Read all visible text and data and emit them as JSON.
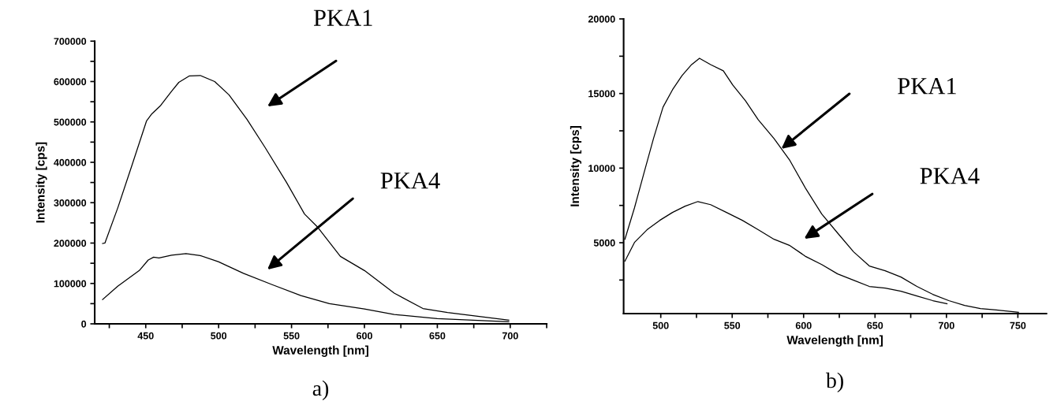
{
  "chart_data": [
    {
      "type": "line",
      "xlabel": "Wavelength [nm]",
      "ylabel": "Intensity [cps]",
      "xlim": [
        415,
        725
      ],
      "ylim": [
        0,
        700000
      ],
      "xticks": [
        {
          "value": 425,
          "label": null
        },
        450,
        {
          "value": 475,
          "label": null
        },
        500,
        {
          "value": 525,
          "label": null
        },
        550,
        {
          "value": 575,
          "label": null
        },
        600,
        {
          "value": 625,
          "label": null
        },
        650,
        {
          "value": 675,
          "label": null
        },
        700,
        {
          "value": 725,
          "label": null
        }
      ],
      "yticks": [
        0,
        {
          "value": 50000,
          "label": null
        },
        100000,
        {
          "value": 150000,
          "label": null
        },
        200000,
        {
          "value": 250000,
          "label": null
        },
        300000,
        {
          "value": 350000,
          "label": null
        },
        400000,
        {
          "value": 450000,
          "label": null
        },
        500000,
        {
          "value": 550000,
          "label": null
        },
        600000,
        {
          "value": 650000,
          "label": null
        },
        700000
      ],
      "grid": false,
      "legend": false,
      "marker": "none",
      "line_style": "solid",
      "series": [
        {
          "color": "#000000",
          "x": [
            420.4,
            422,
            431,
            440.6,
            450.5,
            454.2,
            460.3,
            467.7,
            472.7,
            480,
            487.4,
            497.3,
            507.1,
            519.5,
            531.8,
            546.6,
            558.9,
            567.5,
            583.5,
            600,
            620.4,
            640.1,
            657,
            699
          ],
          "values": [
            199000,
            200000,
            289000,
            393000,
            502000,
            520000,
            541000,
            576000,
            598000,
            614000,
            615000,
            600000,
            567000,
            506000,
            437000,
            350000,
            272000,
            241000,
            167000,
            132000,
            76000,
            38000,
            28000,
            9000
          ]
        },
        {
          "color": "#000000",
          "x": [
            420.4,
            430.8,
            445.6,
            451.7,
            455.4,
            459.1,
            467.7,
            477.6,
            487.4,
            499.8,
            517,
            536.7,
            556.4,
            576,
            600,
            620.4,
            650,
            699
          ],
          "values": [
            60000,
            93000,
            132000,
            158000,
            165000,
            163000,
            170000,
            174000,
            169000,
            154000,
            125000,
            97000,
            70000,
            50000,
            37000,
            23000,
            13000,
            5000
          ]
        }
      ],
      "annotations": [
        "PKA1",
        "PKA4",
        "a)"
      ]
    },
    {
      "type": "line",
      "xlabel": "Wavelength [nm]",
      "ylabel": "Intensity [cps]",
      "xlim": [
        474,
        770
      ],
      "ylim": [
        250,
        20000
      ],
      "xticks": [
        500,
        {
          "value": 525,
          "label": null
        },
        550,
        {
          "value": 575,
          "label": null
        },
        600,
        {
          "value": 625,
          "label": null
        },
        650,
        {
          "value": 675,
          "label": null
        },
        700,
        {
          "value": 725,
          "label": null
        },
        750
      ],
      "yticks": [
        {
          "value": 2500,
          "label": null
        },
        5000,
        {
          "value": 7500,
          "label": null
        },
        10000,
        {
          "value": 12500,
          "label": null
        },
        15000,
        {
          "value": 17500,
          "label": null
        },
        20000
      ],
      "grid": false,
      "legend": false,
      "marker": "none",
      "line_style": "solid",
      "series": [
        {
          "color": "#000000",
          "x": [
            474.9,
            481.6,
            488.2,
            494.9,
            501.6,
            508.2,
            514.9,
            521.6,
            527.1,
            534.9,
            543.8,
            550.4,
            559.3,
            568.2,
            579.3,
            590.4,
            601.6,
            612.7,
            623.8,
            635,
            646,
            657.1,
            668.2,
            679.3,
            690.4,
            701.6,
            712.7,
            723.8,
            734.9,
            750.4
          ],
          "values": [
            5230,
            7340,
            9660,
            11980,
            14090,
            15250,
            16200,
            16940,
            17360,
            16940,
            16520,
            15570,
            14510,
            13250,
            11980,
            10510,
            8610,
            6920,
            5650,
            4390,
            3440,
            3120,
            2700,
            2070,
            1540,
            1120,
            800,
            590,
            490,
            340
          ]
        },
        {
          "color": "#000000",
          "x": [
            474.9,
            481.6,
            490.4,
            499.3,
            508.2,
            517.1,
            526,
            534.9,
            546,
            557.1,
            568.2,
            579.3,
            590.4,
            601.6,
            612.7,
            623.8,
            635,
            646,
            657.1,
            668.2,
            679.3,
            690.4,
            700.4
          ],
          "values": [
            3760,
            5020,
            5870,
            6500,
            7030,
            7450,
            7760,
            7550,
            7030,
            6500,
            5870,
            5230,
            4810,
            4070,
            3540,
            2910,
            2490,
            2070,
            1960,
            1750,
            1430,
            1120,
            910
          ]
        }
      ],
      "annotations": [
        "PKA1",
        "PKA4",
        "b)"
      ]
    }
  ]
}
